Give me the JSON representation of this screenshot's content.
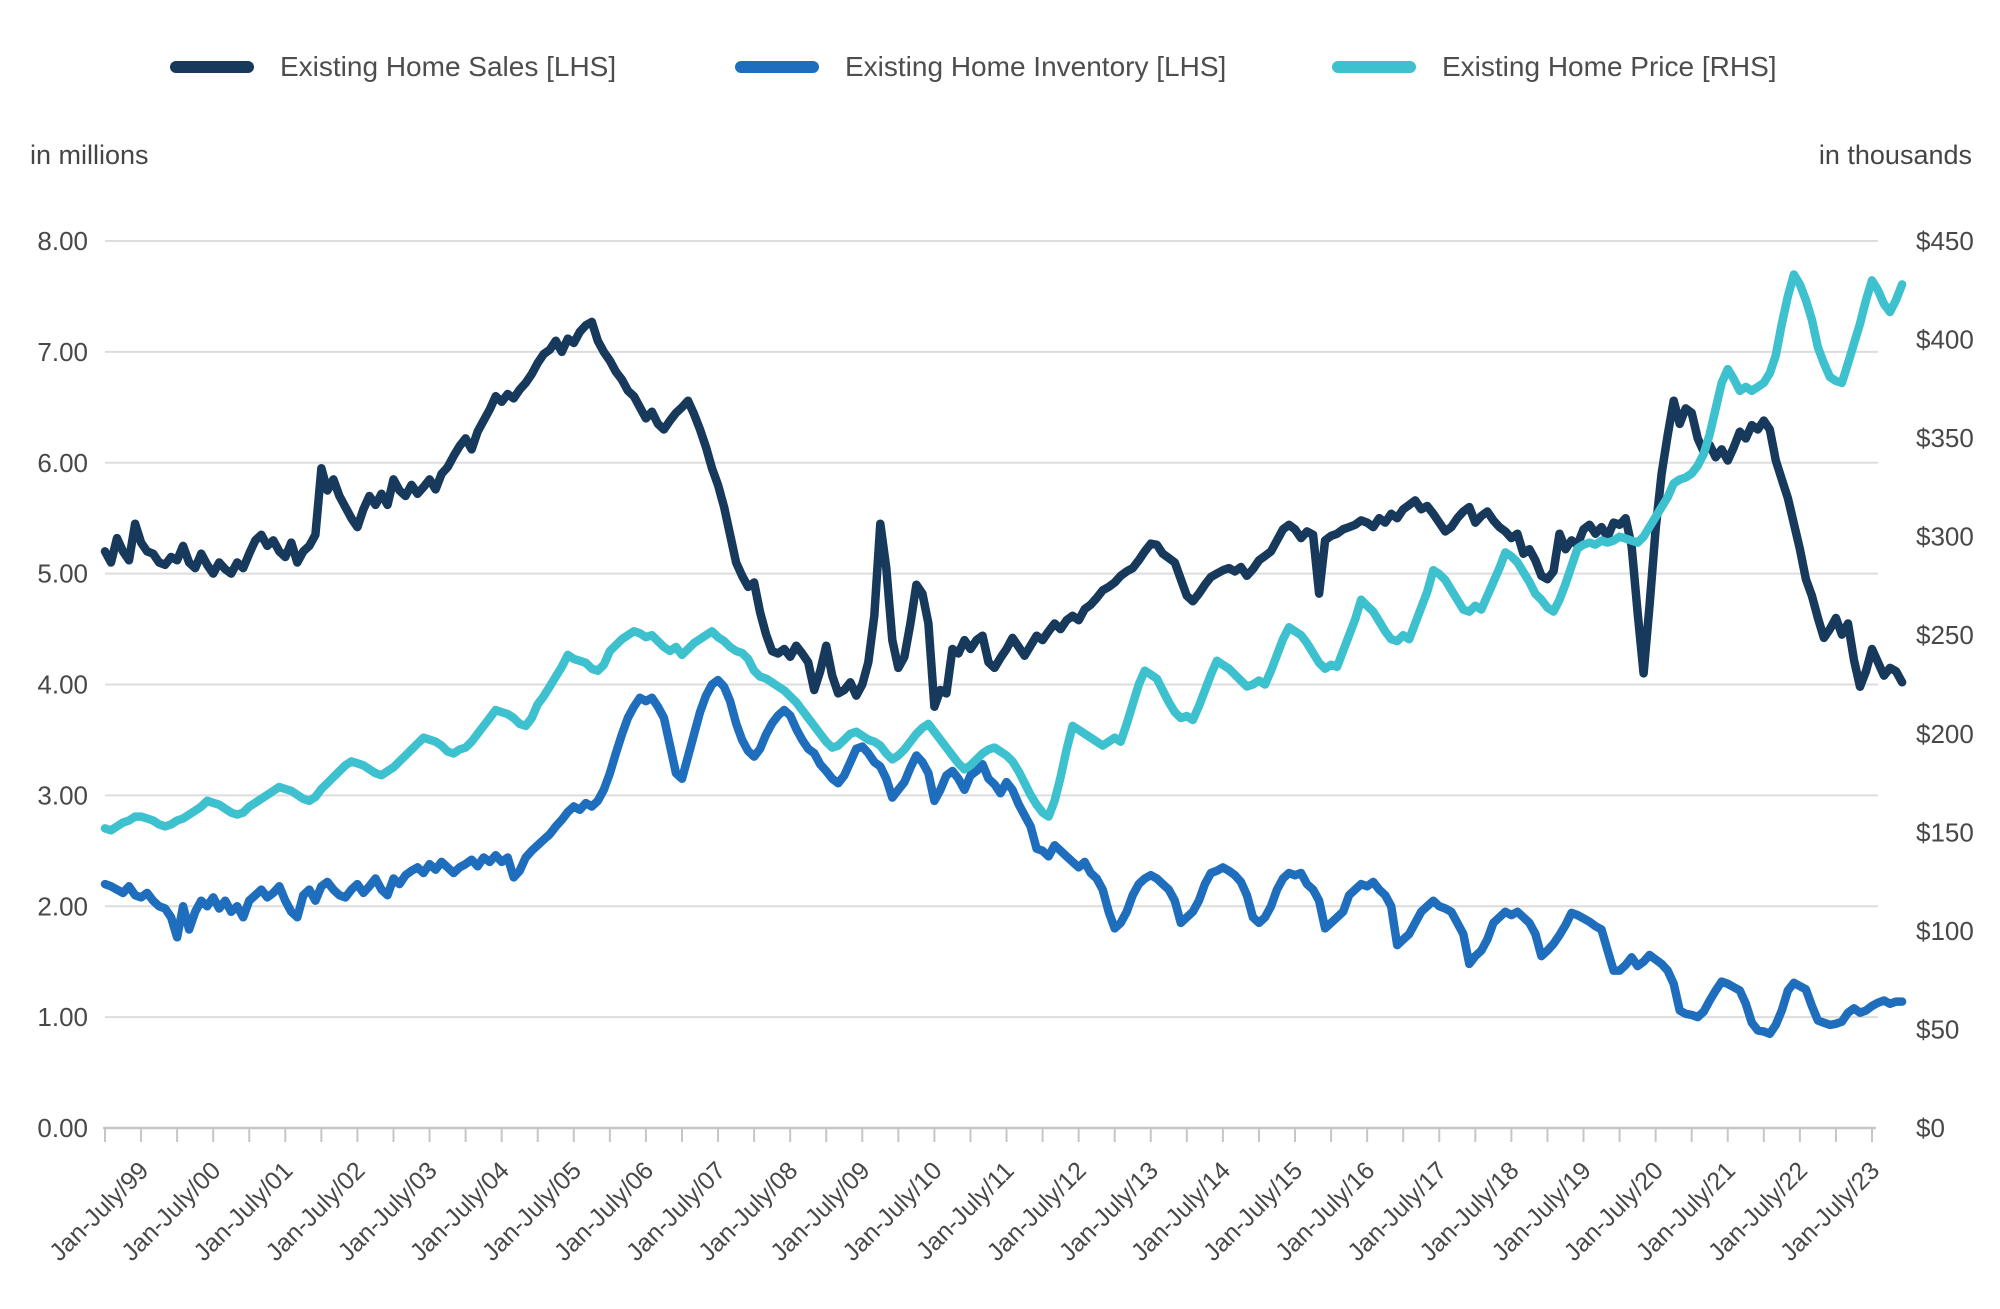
{
  "legend": {
    "items": [
      {
        "label": "Existing Home Sales [LHS]",
        "color": "#17395C"
      },
      {
        "label": "Existing Home Inventory [LHS]",
        "color": "#1F6EBE"
      },
      {
        "label": "Existing Home Price [RHS]",
        "color": "#3EC1CE"
      }
    ]
  },
  "colors": {
    "sales_line": "#17395C",
    "inventory_line": "#1F6EBE",
    "price_line": "#3EC1CE",
    "gridline": "#DDDDDD",
    "axis_line": "#C6C6C6",
    "tick_text": "#484848"
  },
  "chart_data": {
    "type": "line",
    "grid": "horizontal",
    "legend_position": "top",
    "left_axis": {
      "title": "in millions",
      "min": 0,
      "max": 8,
      "tick_step": 1,
      "tick_labels": [
        "0.00",
        "1.00",
        "2.00",
        "3.00",
        "4.00",
        "5.00",
        "6.00",
        "7.00",
        "8.00"
      ]
    },
    "right_axis": {
      "title": "in thousands",
      "min": 0,
      "max": 450,
      "tick_step": 50,
      "tick_labels": [
        "$0",
        "$50",
        "$100",
        "$150",
        "$200",
        "$250",
        "$300",
        "$350",
        "$400",
        "$450"
      ]
    },
    "x_axis": {
      "start_year": 1999,
      "interval": "monthly",
      "points": 300,
      "minor_tick_every_months": 6,
      "labels": [
        "Jan-July/99",
        "Jan-July/00",
        "Jan-July/01",
        "Jan-July/02",
        "Jan-July/03",
        "Jan-July/04",
        "Jan-July/05",
        "Jan-July/06",
        "Jan-July/07",
        "Jan-July/08",
        "Jan-July/09",
        "Jan-July/10",
        "Jan-July/11",
        "Jan-July/12",
        "Jan-July/13",
        "Jan-July/14",
        "Jan-July/15",
        "Jan-July/16",
        "Jan-July/17",
        "Jan-July/18",
        "Jan-July/19",
        "Jan-July/20",
        "Jan-July/21",
        "Jan-July/22",
        "Jan-July/23"
      ]
    },
    "series": [
      {
        "key": "sales",
        "name": "Existing Home Sales [LHS]",
        "axis": "left",
        "color": "#17395C",
        "values": [
          5.2,
          5.1,
          5.32,
          5.2,
          5.12,
          5.45,
          5.28,
          5.2,
          5.18,
          5.1,
          5.08,
          5.15,
          5.12,
          5.25,
          5.1,
          5.05,
          5.18,
          5.08,
          5.0,
          5.1,
          5.04,
          5.0,
          5.1,
          5.05,
          5.18,
          5.3,
          5.35,
          5.25,
          5.3,
          5.2,
          5.15,
          5.28,
          5.1,
          5.2,
          5.25,
          5.35,
          5.95,
          5.75,
          5.85,
          5.7,
          5.6,
          5.5,
          5.42,
          5.58,
          5.7,
          5.62,
          5.72,
          5.62,
          5.85,
          5.75,
          5.7,
          5.8,
          5.72,
          5.78,
          5.85,
          5.76,
          5.9,
          5.96,
          6.06,
          6.15,
          6.22,
          6.12,
          6.28,
          6.38,
          6.48,
          6.6,
          6.55,
          6.62,
          6.58,
          6.66,
          6.72,
          6.8,
          6.9,
          6.98,
          7.02,
          7.1,
          7.0,
          7.12,
          7.08,
          7.18,
          7.24,
          7.27,
          7.1,
          7.0,
          6.92,
          6.82,
          6.75,
          6.65,
          6.6,
          6.5,
          6.4,
          6.46,
          6.35,
          6.3,
          6.38,
          6.45,
          6.5,
          6.56,
          6.44,
          6.3,
          6.14,
          5.95,
          5.8,
          5.6,
          5.35,
          5.1,
          4.98,
          4.88,
          4.92,
          4.65,
          4.45,
          4.3,
          4.28,
          4.32,
          4.25,
          4.35,
          4.28,
          4.2,
          3.95,
          4.12,
          4.35,
          4.08,
          3.92,
          3.95,
          4.02,
          3.9,
          4.0,
          4.2,
          4.62,
          5.45,
          5.05,
          4.4,
          4.15,
          4.25,
          4.55,
          4.9,
          4.82,
          4.55,
          3.8,
          3.95,
          3.92,
          4.32,
          4.28,
          4.4,
          4.32,
          4.4,
          4.44,
          4.2,
          4.15,
          4.24,
          4.32,
          4.42,
          4.34,
          4.26,
          4.35,
          4.44,
          4.4,
          4.48,
          4.55,
          4.5,
          4.58,
          4.62,
          4.58,
          4.68,
          4.72,
          4.78,
          4.85,
          4.88,
          4.92,
          4.98,
          5.02,
          5.05,
          5.12,
          5.2,
          5.27,
          5.26,
          5.18,
          5.14,
          5.1,
          4.95,
          4.8,
          4.75,
          4.82,
          4.9,
          4.97,
          5.0,
          5.03,
          5.05,
          5.02,
          5.06,
          4.98,
          5.04,
          5.12,
          5.16,
          5.2,
          5.3,
          5.4,
          5.44,
          5.4,
          5.32,
          5.38,
          5.35,
          4.82,
          5.3,
          5.34,
          5.36,
          5.4,
          5.42,
          5.44,
          5.48,
          5.46,
          5.42,
          5.5,
          5.46,
          5.54,
          5.5,
          5.58,
          5.62,
          5.66,
          5.58,
          5.61,
          5.54,
          5.46,
          5.38,
          5.42,
          5.5,
          5.56,
          5.6,
          5.46,
          5.52,
          5.56,
          5.48,
          5.42,
          5.38,
          5.32,
          5.36,
          5.18,
          5.22,
          5.12,
          4.98,
          4.95,
          5.02,
          5.36,
          5.22,
          5.3,
          5.26,
          5.4,
          5.44,
          5.36,
          5.42,
          5.33,
          5.46,
          5.44,
          5.5,
          5.25,
          4.65,
          4.1,
          4.72,
          5.4,
          5.9,
          6.25,
          6.56,
          6.35,
          6.49,
          6.45,
          6.22,
          6.1,
          6.16,
          6.05,
          6.12,
          6.02,
          6.14,
          6.28,
          6.22,
          6.34,
          6.3,
          6.38,
          6.3,
          6.02,
          5.85,
          5.68,
          5.45,
          5.22,
          4.95,
          4.8,
          4.6,
          4.42,
          4.5,
          4.6,
          4.45,
          4.55,
          4.22,
          3.98,
          4.12,
          4.32,
          4.2,
          4.08,
          4.15,
          4.12,
          4.02
        ]
      },
      {
        "key": "inventory",
        "name": "Existing Home Inventory [LHS]",
        "axis": "left",
        "color": "#1F6EBE",
        "values": [
          2.2,
          2.18,
          2.15,
          2.12,
          2.18,
          2.1,
          2.08,
          2.12,
          2.05,
          2.0,
          1.98,
          1.9,
          1.72,
          2.0,
          1.79,
          1.95,
          2.05,
          2.0,
          2.08,
          1.98,
          2.05,
          1.95,
          2.0,
          1.9,
          2.05,
          2.1,
          2.15,
          2.08,
          2.12,
          2.18,
          2.05,
          1.95,
          1.9,
          2.1,
          2.15,
          2.05,
          2.18,
          2.22,
          2.15,
          2.1,
          2.08,
          2.15,
          2.2,
          2.12,
          2.18,
          2.25,
          2.15,
          2.1,
          2.25,
          2.2,
          2.28,
          2.32,
          2.35,
          2.3,
          2.38,
          2.33,
          2.4,
          2.35,
          2.3,
          2.35,
          2.38,
          2.42,
          2.36,
          2.44,
          2.4,
          2.46,
          2.4,
          2.44,
          2.26,
          2.32,
          2.44,
          2.5,
          2.55,
          2.6,
          2.65,
          2.72,
          2.78,
          2.85,
          2.9,
          2.87,
          2.93,
          2.9,
          2.95,
          3.05,
          3.2,
          3.38,
          3.55,
          3.7,
          3.8,
          3.88,
          3.85,
          3.88,
          3.8,
          3.7,
          3.45,
          3.2,
          3.15,
          3.35,
          3.55,
          3.75,
          3.9,
          4.0,
          4.04,
          3.98,
          3.85,
          3.65,
          3.5,
          3.4,
          3.35,
          3.42,
          3.55,
          3.65,
          3.72,
          3.77,
          3.72,
          3.6,
          3.5,
          3.42,
          3.38,
          3.28,
          3.22,
          3.15,
          3.11,
          3.18,
          3.3,
          3.42,
          3.44,
          3.38,
          3.3,
          3.26,
          3.15,
          2.98,
          3.05,
          3.12,
          3.25,
          3.36,
          3.3,
          3.2,
          2.95,
          3.05,
          3.18,
          3.22,
          3.15,
          3.05,
          3.18,
          3.22,
          3.28,
          3.15,
          3.1,
          3.02,
          3.12,
          3.05,
          2.92,
          2.82,
          2.72,
          2.52,
          2.5,
          2.45,
          2.55,
          2.5,
          2.45,
          2.4,
          2.35,
          2.4,
          2.3,
          2.25,
          2.15,
          1.95,
          1.8,
          1.85,
          1.95,
          2.1,
          2.2,
          2.25,
          2.28,
          2.25,
          2.2,
          2.15,
          2.05,
          1.85,
          1.9,
          1.95,
          2.05,
          2.2,
          2.3,
          2.32,
          2.35,
          2.32,
          2.28,
          2.22,
          2.1,
          1.9,
          1.85,
          1.9,
          2.0,
          2.15,
          2.25,
          2.3,
          2.28,
          2.3,
          2.2,
          2.15,
          2.05,
          1.8,
          1.85,
          1.9,
          1.95,
          2.1,
          2.15,
          2.2,
          2.18,
          2.22,
          2.15,
          2.1,
          2.0,
          1.65,
          1.7,
          1.75,
          1.85,
          1.95,
          2.0,
          2.05,
          2.0,
          1.98,
          1.95,
          1.85,
          1.75,
          1.48,
          1.55,
          1.6,
          1.7,
          1.85,
          1.9,
          1.95,
          1.92,
          1.95,
          1.9,
          1.85,
          1.75,
          1.55,
          1.6,
          1.66,
          1.74,
          1.83,
          1.94,
          1.92,
          1.89,
          1.86,
          1.82,
          1.79,
          1.6,
          1.42,
          1.42,
          1.47,
          1.54,
          1.46,
          1.5,
          1.56,
          1.52,
          1.48,
          1.42,
          1.3,
          1.06,
          1.03,
          1.02,
          1.0,
          1.05,
          1.15,
          1.24,
          1.32,
          1.3,
          1.27,
          1.24,
          1.12,
          0.95,
          0.88,
          0.87,
          0.85,
          0.93,
          1.06,
          1.24,
          1.31,
          1.28,
          1.25,
          1.1,
          0.97,
          0.95,
          0.93,
          0.94,
          0.96,
          1.04,
          1.08,
          1.04,
          1.06,
          1.1,
          1.13,
          1.15,
          1.12,
          1.14,
          1.14
        ]
      },
      {
        "key": "price",
        "name": "Existing Home Price [RHS]",
        "axis": "right",
        "color": "#3EC1CE",
        "values": [
          152,
          151,
          153,
          155,
          156,
          158,
          158,
          157,
          156,
          154,
          153,
          154,
          156,
          157,
          159,
          161,
          163,
          166,
          165,
          164,
          162,
          160,
          159,
          160,
          163,
          165,
          167,
          169,
          171,
          173,
          172,
          171,
          169,
          167,
          166,
          168,
          172,
          175,
          178,
          181,
          184,
          186,
          185,
          184,
          182,
          180,
          179,
          181,
          183,
          186,
          189,
          192,
          195,
          198,
          197,
          196,
          194,
          191,
          190,
          192,
          193,
          196,
          200,
          204,
          208,
          212,
          211,
          210,
          208,
          205,
          204,
          208,
          215,
          219,
          224,
          229,
          234,
          240,
          238,
          237,
          236,
          233,
          232,
          235,
          242,
          245,
          248,
          250,
          252,
          251,
          249,
          250,
          247,
          244,
          242,
          244,
          240,
          243,
          246,
          248,
          250,
          252,
          249,
          247,
          244,
          242,
          241,
          238,
          232,
          229,
          228,
          226,
          224,
          222,
          219,
          216,
          212,
          208,
          204,
          200,
          196,
          193,
          194,
          197,
          200,
          201,
          199,
          197,
          196,
          194,
          190,
          187,
          189,
          192,
          196,
          200,
          203,
          205,
          201,
          197,
          193,
          189,
          185,
          182,
          184,
          187,
          190,
          192,
          193,
          191,
          189,
          186,
          181,
          175,
          169,
          164,
          160,
          158,
          166,
          178,
          192,
          204,
          202,
          200,
          198,
          196,
          194,
          196,
          198,
          196,
          205,
          215,
          225,
          232,
          230,
          228,
          222,
          216,
          211,
          208,
          209,
          207,
          214,
          222,
          230,
          237,
          235,
          233,
          230,
          227,
          224,
          225,
          227,
          225,
          232,
          240,
          248,
          254,
          252,
          250,
          246,
          241,
          236,
          233,
          235,
          234,
          242,
          250,
          258,
          268,
          265,
          262,
          257,
          252,
          248,
          247,
          250,
          248,
          256,
          264,
          272,
          283,
          281,
          278,
          273,
          268,
          263,
          262,
          265,
          263,
          270,
          277,
          284,
          292,
          290,
          287,
          282,
          277,
          271,
          268,
          264,
          262,
          268,
          276,
          285,
          294,
          296,
          297,
          296,
          298,
          297,
          298,
          300,
          299,
          298,
          297,
          300,
          305,
          310,
          315,
          320,
          327,
          329,
          330,
          332,
          336,
          342,
          352,
          365,
          378,
          385,
          380,
          374,
          376,
          374,
          376,
          378,
          383,
          392,
          408,
          422,
          433,
          428,
          420,
          410,
          396,
          388,
          381,
          379,
          378,
          388,
          398,
          408,
          420,
          430,
          425,
          418,
          414,
          420,
          428
        ]
      }
    ]
  }
}
